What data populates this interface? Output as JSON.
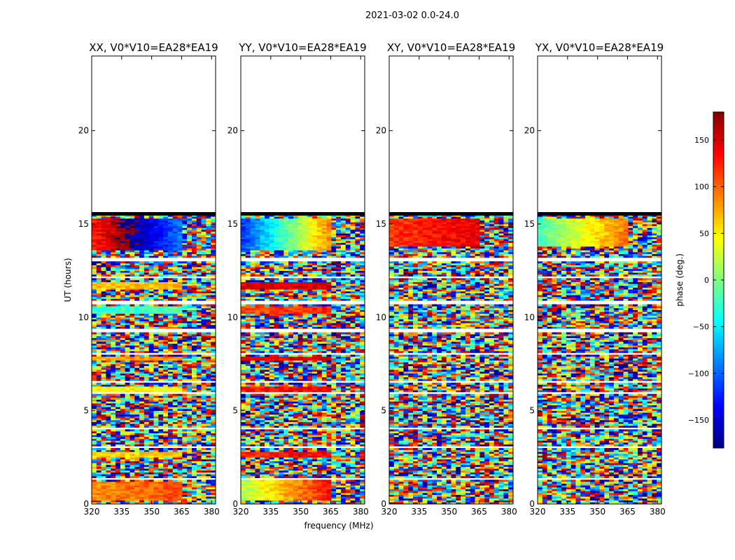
{
  "figure_title": "2021-03-02 0.0-24.0",
  "chart_data": {
    "type": "heatmap",
    "suptitle": "2021-03-02 0.0-24.0",
    "xlabel": "frequency (MHz)",
    "ylabel": "UT (hours)",
    "xlim": [
      320,
      382
    ],
    "ylim": [
      0,
      24
    ],
    "xticks": [
      320,
      335,
      350,
      365,
      380
    ],
    "yticks": [
      0,
      5,
      10,
      15,
      20
    ],
    "panels": [
      {
        "title": "XX, V0*V10=EA28*EA19",
        "pol": "XX"
      },
      {
        "title": "YY, V0*V10=EA28*EA19",
        "pol": "YY"
      },
      {
        "title": "XY, V0*V10=EA28*EA19",
        "pol": "XY"
      },
      {
        "title": "YX, V0*V10=EA28*EA19",
        "pol": "YX"
      }
    ],
    "data_end_hour": 15.6,
    "colorbar": {
      "label": "phase (deg.)",
      "range": [
        -180,
        180
      ],
      "ticks": [
        -150,
        -100,
        -50,
        0,
        50,
        100,
        150
      ],
      "tick_labels": [
        "−150",
        "−100",
        "−50",
        "0",
        "50",
        "100",
        "150"
      ],
      "colormap": "jet"
    }
  }
}
